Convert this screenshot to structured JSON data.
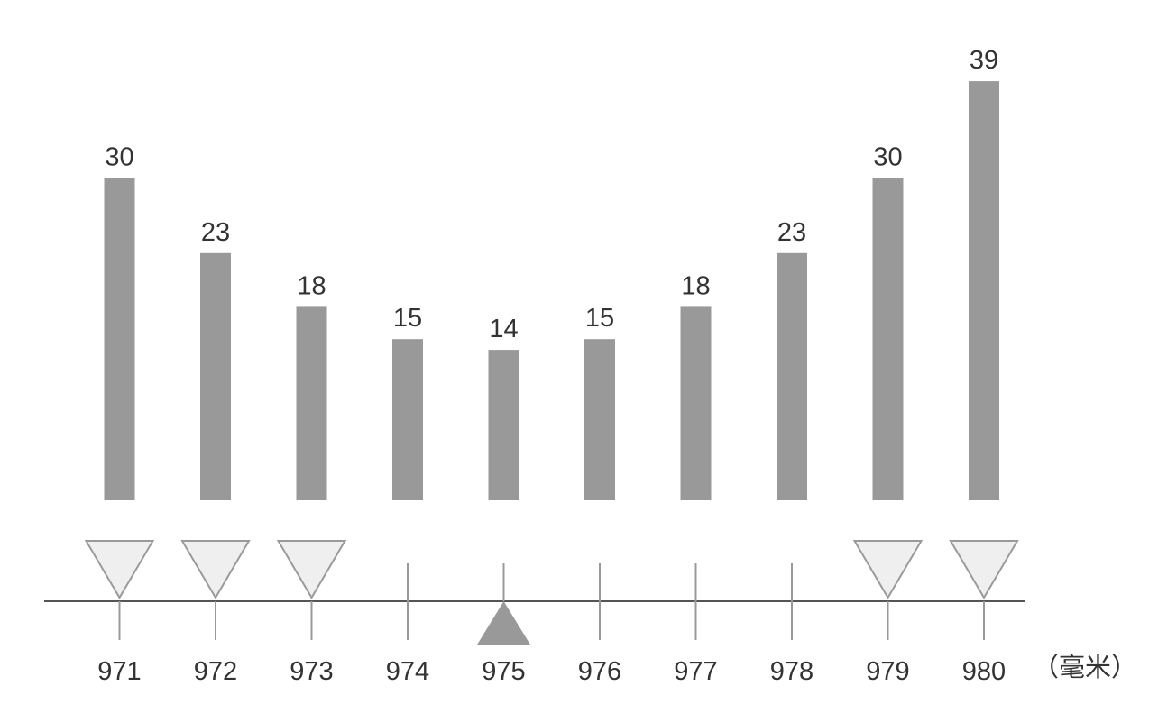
{
  "chart_data": {
    "type": "bar",
    "categories": [
      "971",
      "972",
      "973",
      "974",
      "975",
      "976",
      "977",
      "978",
      "979",
      "980"
    ],
    "values": [
      30,
      23,
      18,
      15,
      14,
      15,
      18,
      23,
      30,
      39
    ],
    "value_labels": [
      "30",
      "23",
      "18",
      "15",
      "14",
      "15",
      "18",
      "23",
      "30",
      "39"
    ],
    "unit": "（毫米）",
    "markers": [
      "down",
      "down",
      "down",
      "none",
      "up",
      "none",
      "none",
      "none",
      "down",
      "down"
    ],
    "ylim": [
      0,
      39
    ],
    "grid": false,
    "colors": {
      "bar": "#9a9999",
      "axis": "#555555",
      "tick": "#9a9a9a",
      "down_marker_fill": "#efefef",
      "down_marker_stroke": "#9a9a9a",
      "up_marker_fill": "#9a9999",
      "text": "#333333"
    }
  }
}
